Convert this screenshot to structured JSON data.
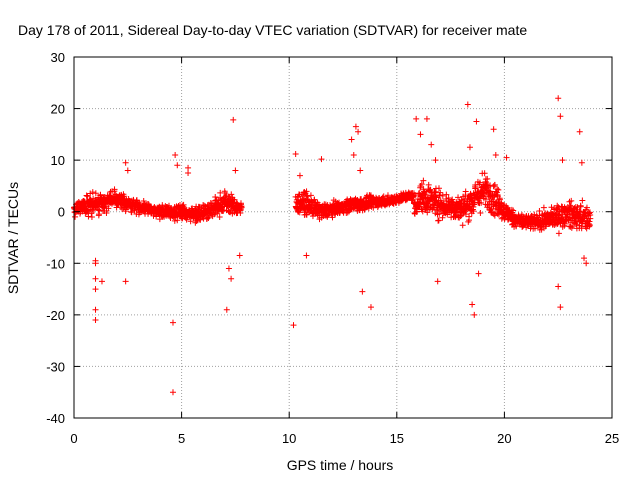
{
  "chart_data": {
    "type": "scatter",
    "title": "Day 178 of 2011, Sidereal Day-to-day VTEC variation (SDTVAR) for receiver mate",
    "xlabel": "GPS time / hours",
    "ylabel": "SDTVAR / TECUs",
    "xlim": [
      0,
      25
    ],
    "ylim": [
      -40,
      30
    ],
    "xticks": [
      0,
      5,
      10,
      15,
      20,
      25
    ],
    "yticks": [
      -40,
      -30,
      -20,
      -10,
      0,
      10,
      20,
      30
    ],
    "grid": true,
    "marker": "+",
    "series": [
      {
        "name": "SDTVAR",
        "color": "#ff0000",
        "bands": [
          {
            "x": [
              0.0,
              0.5,
              1.0,
              1.5,
              2.0,
              2.5,
              3.0,
              3.5,
              4.0,
              4.5,
              5.0,
              5.5,
              6.0,
              6.5,
              7.0,
              7.5,
              7.8
            ],
            "center": [
              0.5,
              1.0,
              1.5,
              2.0,
              2.5,
              1.5,
              1.0,
              0.5,
              0.0,
              -0.2,
              0.0,
              -0.5,
              0.0,
              0.5,
              2.0,
              1.0,
              0.5
            ],
            "spread": [
              2.5,
              3.0,
              3.5,
              3.0,
              2.5,
              2.0,
              2.0,
              1.8,
              1.8,
              2.0,
              2.5,
              2.5,
              2.5,
              3.0,
              3.5,
              2.5,
              2.0
            ]
          },
          {
            "x": [
              10.3,
              10.5,
              11.0,
              11.5,
              12.0,
              12.5,
              13.0,
              13.5,
              14.0,
              14.5,
              15.0,
              15.5,
              15.8
            ],
            "center": [
              1.0,
              2.0,
              1.0,
              0.0,
              0.5,
              1.0,
              1.5,
              1.5,
              2.0,
              2.0,
              2.5,
              3.0,
              3.0
            ],
            "spread": [
              3.0,
              3.5,
              3.0,
              2.5,
              2.0,
              2.0,
              2.5,
              2.0,
              1.8,
              1.5,
              1.5,
              1.5,
              1.5
            ]
          },
          {
            "x": [
              15.8,
              16.2,
              16.5,
              17.0,
              17.5,
              18.0,
              18.5,
              19.0,
              19.5,
              20.0,
              20.5,
              21.0,
              21.5,
              22.0,
              22.5,
              23.0,
              23.5,
              24.0
            ],
            "center": [
              1.0,
              3.0,
              2.5,
              1.5,
              1.0,
              0.5,
              2.0,
              4.0,
              3.0,
              0.0,
              -1.5,
              -2.0,
              -2.0,
              -1.5,
              -1.0,
              -0.5,
              -1.0,
              -1.5
            ],
            "spread": [
              3.0,
              5.0,
              5.0,
              4.5,
              4.0,
              4.0,
              5.0,
              6.0,
              5.5,
              3.0,
              2.5,
              2.5,
              2.5,
              3.0,
              3.5,
              4.0,
              4.0,
              4.0
            ]
          }
        ],
        "outliers": [
          [
            1.0,
            -9.5
          ],
          [
            1.0,
            -10.0
          ],
          [
            1.0,
            -13.0
          ],
          [
            1.0,
            -15.0
          ],
          [
            1.0,
            -19.0
          ],
          [
            1.0,
            -21.0
          ],
          [
            1.3,
            -13.5
          ],
          [
            2.4,
            9.5
          ],
          [
            2.4,
            -13.5
          ],
          [
            2.5,
            8.0
          ],
          [
            4.6,
            -21.5
          ],
          [
            4.6,
            -35.0
          ],
          [
            4.7,
            11.0
          ],
          [
            4.8,
            9.0
          ],
          [
            5.3,
            8.5
          ],
          [
            5.3,
            7.5
          ],
          [
            7.1,
            -19.0
          ],
          [
            7.2,
            -11.0
          ],
          [
            7.3,
            -13.0
          ],
          [
            7.4,
            17.8
          ],
          [
            7.5,
            8.0
          ],
          [
            7.7,
            -8.5
          ],
          [
            10.2,
            -22.0
          ],
          [
            10.3,
            11.2
          ],
          [
            10.5,
            7.0
          ],
          [
            10.8,
            -8.5
          ],
          [
            11.5,
            10.2
          ],
          [
            12.9,
            14.0
          ],
          [
            13.0,
            11.0
          ],
          [
            13.1,
            16.5
          ],
          [
            13.2,
            15.5
          ],
          [
            13.3,
            8.0
          ],
          [
            13.4,
            -15.5
          ],
          [
            13.8,
            -18.5
          ],
          [
            15.9,
            18.0
          ],
          [
            16.1,
            15.0
          ],
          [
            16.4,
            18.0
          ],
          [
            16.6,
            13.0
          ],
          [
            16.8,
            10.0
          ],
          [
            16.9,
            -13.5
          ],
          [
            18.3,
            20.8
          ],
          [
            18.4,
            12.5
          ],
          [
            18.5,
            -18.0
          ],
          [
            18.6,
            -20.0
          ],
          [
            18.7,
            17.5
          ],
          [
            18.8,
            -12.0
          ],
          [
            19.5,
            16.0
          ],
          [
            19.6,
            11.0
          ],
          [
            20.1,
            10.5
          ],
          [
            22.5,
            22.0
          ],
          [
            22.6,
            18.5
          ],
          [
            22.5,
            -14.5
          ],
          [
            22.6,
            -18.5
          ],
          [
            22.7,
            10.0
          ],
          [
            23.5,
            15.5
          ],
          [
            23.6,
            9.5
          ],
          [
            23.7,
            -9.0
          ],
          [
            23.8,
            -10.0
          ]
        ]
      }
    ]
  }
}
